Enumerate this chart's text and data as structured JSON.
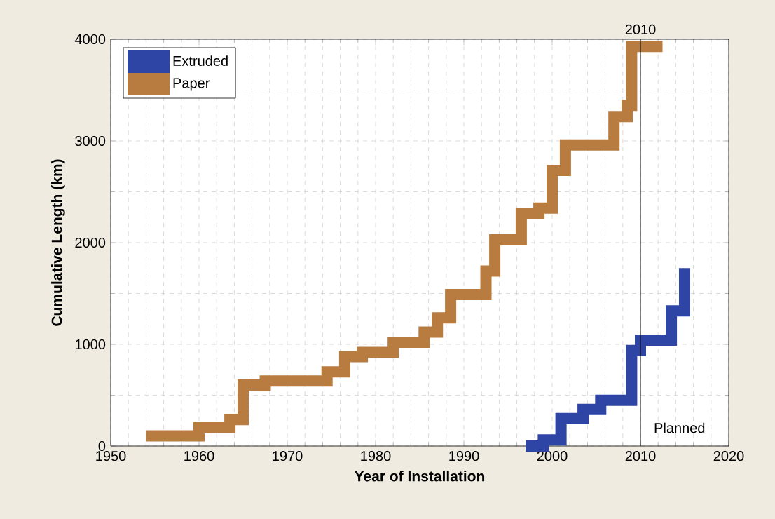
{
  "chart_data": {
    "type": "step",
    "xlabel": "Year of Installation",
    "ylabel": "Cumulative Length (km)",
    "xlim": [
      1950,
      2020
    ],
    "ylim": [
      0,
      4000
    ],
    "xticks": [
      1950,
      1960,
      1970,
      1980,
      1990,
      2000,
      2010,
      2020
    ],
    "yticks": [
      0,
      1000,
      2000,
      3000,
      4000
    ],
    "grid": true,
    "legend": "top left",
    "series": [
      {
        "name": "Extruded",
        "color": "#2e45a5",
        "x": [
          1997,
          1999,
          2001,
          2003.5,
          2005.5,
          2009,
          2010,
          2013.5,
          2015
        ],
        "values": [
          0,
          60,
          270,
          360,
          450,
          940,
          1040,
          1330,
          1750
        ]
      },
      {
        "name": "Paper",
        "color": "#b87c41",
        "x": [
          1954,
          1960,
          1963.5,
          1965,
          1967.5,
          1974.5,
          1976.5,
          1978.5,
          1982,
          1985.5,
          1987,
          1988.5,
          1992.5,
          1993.5,
          1996.5,
          1998.5,
          2000,
          2001.5,
          2007,
          2008.5,
          2009,
          2012.5
        ],
        "values": [
          100,
          180,
          260,
          600,
          640,
          730,
          880,
          920,
          1020,
          1120,
          1260,
          1490,
          1720,
          2030,
          2290,
          2340,
          2710,
          2960,
          3240,
          3350,
          3930,
          3930
        ]
      }
    ],
    "ref_lines": [
      {
        "axis": "x",
        "value": 2010,
        "label": "2010"
      }
    ],
    "annotations": [
      "Planned"
    ]
  }
}
